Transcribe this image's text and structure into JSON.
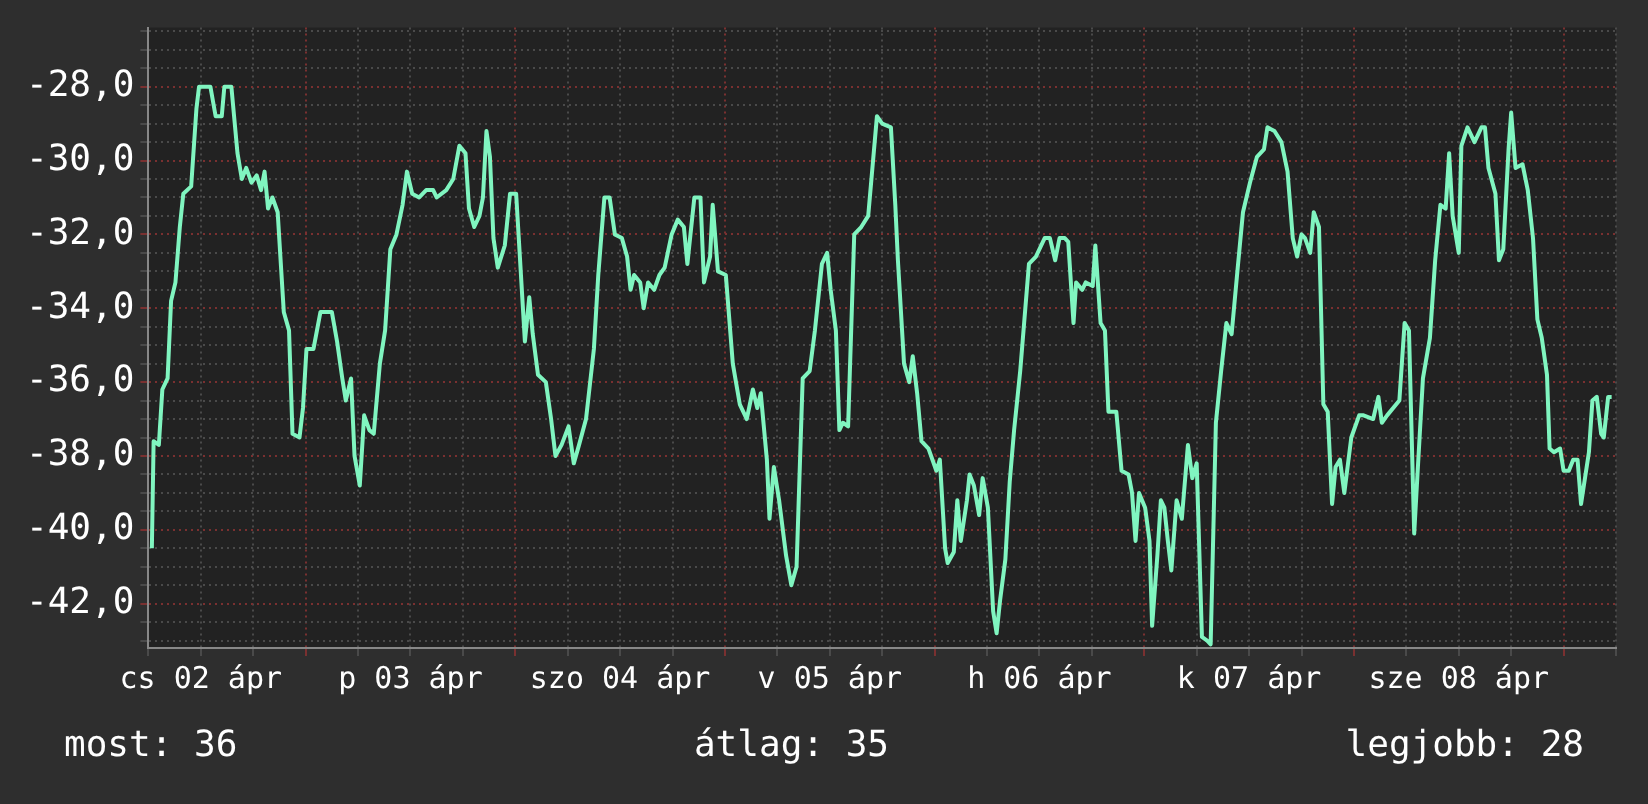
{
  "chart_data": {
    "type": "line",
    "color": "#80f5c0",
    "grid": true,
    "legend": false,
    "marker": "none",
    "line_style": "solid",
    "annotations": [
      "most: 36",
      "átlag: 35",
      "legjobb: 28"
    ],
    "xlim": [
      "--04-02T06:00",
      "--04-09T06:00"
    ],
    "xticks": [
      {
        "value": "--04-02T06:00",
        "label": null
      },
      {
        "value": "--04-02T12:00",
        "label": "cs 02 ápr"
      },
      {
        "value": "--04-02T18:00",
        "label": null
      },
      {
        "value": "--04-03T00:00",
        "label": null
      },
      {
        "value": "--04-03T06:00",
        "label": null
      },
      {
        "value": "--04-03T12:00",
        "label": "p 03 ápr"
      },
      {
        "value": "--04-03T18:00",
        "label": null
      },
      {
        "value": "--04-04T00:00",
        "label": null
      },
      {
        "value": "--04-04T06:00",
        "label": null
      },
      {
        "value": "--04-04T12:00",
        "label": "szo 04 ápr"
      },
      {
        "value": "--04-04T18:00",
        "label": null
      },
      {
        "value": "--04-05T00:00",
        "label": null
      },
      {
        "value": "--04-05T06:00",
        "label": null
      },
      {
        "value": "--04-05T12:00",
        "label": "v 05 ápr"
      },
      {
        "value": "--04-05T18:00",
        "label": null
      },
      {
        "value": "--04-06T00:00",
        "label": null
      },
      {
        "value": "--04-06T06:00",
        "label": null
      },
      {
        "value": "--04-06T12:00",
        "label": "h 06 ápr"
      },
      {
        "value": "--04-06T18:00",
        "label": null
      },
      {
        "value": "--04-07T00:00",
        "label": null
      },
      {
        "value": "--04-07T06:00",
        "label": null
      },
      {
        "value": "--04-07T12:00",
        "label": "k 07 ápr"
      },
      {
        "value": "--04-07T18:00",
        "label": null
      },
      {
        "value": "--04-08T00:00",
        "label": null
      },
      {
        "value": "--04-08T06:00",
        "label": null
      },
      {
        "value": "--04-08T12:00",
        "label": "sze 08 ápr"
      },
      {
        "value": "--04-08T18:00",
        "label": null
      },
      {
        "value": "--04-09T00:00",
        "label": null
      },
      {
        "value": "--04-09T06:00",
        "label": null
      }
    ],
    "x": [
      "--04-02T06:24",
      "--04-02T06:36",
      "--04-02T07:12",
      "--04-02T07:36",
      "--04-02T08:12",
      "--04-02T08:36",
      "--04-02T09:06",
      "--04-02T09:36",
      "--04-02T10:00",
      "--04-02T10:54",
      "--04-02T11:30",
      "--04-02T11:48",
      "--04-02T13:06",
      "--04-02T13:42",
      "--04-02T14:24",
      "--04-02T14:42",
      "--04-02T15:30",
      "--04-02T16:12",
      "--04-02T16:42",
      "--04-02T17:12",
      "--04-02T17:48",
      "--04-02T18:24",
      "--04-02T18:54",
      "--04-02T19:18",
      "--04-02T19:42",
      "--04-02T20:12",
      "--04-02T20:48",
      "--04-02T21:30",
      "--04-02T22:06",
      "--04-02T22:30",
      "--04-02T23:18",
      "--04-02T23:42",
      "--04-03T00:06",
      "--04-03T00:54",
      "--04-03T01:42",
      "--04-03T03:00",
      "--04-03T03:36",
      "--04-03T04:12",
      "--04-03T04:36",
      "--04-03T05:12",
      "--04-03T05:36",
      "--04-03T06:12",
      "--04-03T06:42",
      "--04-03T07:18",
      "--04-03T07:48",
      "--04-03T08:30",
      "--04-03T09:06",
      "--04-03T09:42",
      "--04-03T10:24",
      "--04-03T11:06",
      "--04-03T11:36",
      "--04-03T12:12",
      "--04-03T13:00",
      "--04-03T13:48",
      "--04-03T14:36",
      "--04-03T15:00",
      "--04-03T16:06",
      "--04-03T16:54",
      "--04-03T17:36",
      "--04-03T18:18",
      "--04-03T18:42",
      "--04-03T19:18",
      "--04-03T19:54",
      "--04-03T20:18",
      "--04-03T20:42",
      "--04-03T21:06",
      "--04-03T21:30",
      "--04-03T22:00",
      "--04-03T22:48",
      "--04-03T23:24",
      "--04-04T00:06",
      "--04-04T00:36",
      "--04-04T01:06",
      "--04-04T01:36",
      "--04-04T02:00",
      "--04-04T02:36",
      "--04-04T03:30",
      "--04-04T04:06",
      "--04-04T04:36",
      "--04-04T05:18",
      "--04-04T06:06",
      "--04-04T06:42",
      "--04-04T07:18",
      "--04-04T08:06",
      "--04-04T09:00",
      "--04-04T09:30",
      "--04-04T10:12",
      "--04-04T10:48",
      "--04-04T11:24",
      "--04-04T12:12",
      "--04-04T12:48",
      "--04-04T13:12",
      "--04-04T13:36",
      "--04-04T14:18",
      "--04-04T14:42",
      "--04-04T15:12",
      "--04-04T15:54",
      "--04-04T16:30",
      "--04-04T17:06",
      "--04-04T17:54",
      "--04-04T18:36",
      "--04-04T19:18",
      "--04-04T19:42",
      "--04-04T20:30",
      "--04-04T21:12",
      "--04-04T21:36",
      "--04-04T22:18",
      "--04-04T22:36",
      "--04-04T23:12",
      "--04-05T00:06",
      "--04-05T00:54",
      "--04-05T01:42",
      "--04-05T02:30",
      "--04-05T03:12",
      "--04-05T03:42",
      "--04-05T04:06",
      "--04-05T04:48",
      "--04-05T05:06",
      "--04-05T05:36",
      "--04-05T06:12",
      "--04-05T07:00",
      "--04-05T07:36",
      "--04-05T08:12",
      "--04-05T08:54",
      "--04-05T09:42",
      "--04-05T10:18",
      "--04-05T11:06",
      "--04-05T11:42",
      "--04-05T12:06",
      "--04-05T12:42",
      "--04-05T13:06",
      "--04-05T13:30",
      "--04-05T14:06",
      "--04-05T14:48",
      "--04-05T15:36",
      "--04-05T16:24",
      "--04-05T17:24",
      "--04-05T18:00",
      "--04-05T19:00",
      "--04-05T19:30",
      "--04-05T19:48",
      "--04-05T20:30",
      "--04-05T21:06",
      "--04-05T21:30",
      "--04-05T22:00",
      "--04-05T22:30",
      "--04-05T23:18",
      "--04-06T00:12",
      "--04-06T00:36",
      "--04-06T01:12",
      "--04-06T01:30",
      "--04-06T02:12",
      "--04-06T02:36",
      "--04-06T03:00",
      "--04-06T03:42",
      "--04-06T04:00",
      "--04-06T04:30",
      "--04-06T05:06",
      "--04-06T05:30",
      "--04-06T06:06",
      "--04-06T06:42",
      "--04-06T07:06",
      "--04-06T07:30",
      "--04-06T08:06",
      "--04-06T08:36",
      "--04-06T09:06",
      "--04-06T09:48",
      "--04-06T10:48",
      "--04-06T11:36",
      "--04-06T12:36",
      "--04-06T13:12",
      "--04-06T13:48",
      "--04-06T14:18",
      "--04-06T14:54",
      "--04-06T15:18",
      "--04-06T15:54",
      "--04-06T16:12",
      "--04-06T16:54",
      "--04-06T17:18",
      "--04-06T18:06",
      "--04-06T18:24",
      "--04-06T19:00",
      "--04-06T19:30",
      "--04-06T19:54",
      "--04-06T20:48",
      "--04-06T21:24",
      "--04-06T22:12",
      "--04-06T22:36",
      "--04-06T23:00",
      "--04-06T23:24",
      "--04-07T00:06",
      "--04-07T00:36",
      "--04-07T00:54",
      "--04-07T01:30",
      "--04-07T01:54",
      "--04-07T02:18",
      "--04-07T02:42",
      "--04-07T03:06",
      "--04-07T03:42",
      "--04-07T04:18",
      "--04-07T05:00",
      "--04-07T05:30",
      "--04-07T06:00",
      "--04-07T06:36",
      "--04-07T07:12",
      "--04-07T07:36",
      "--04-07T08:12",
      "--04-07T08:48",
      "--04-07T09:24",
      "--04-07T10:00",
      "--04-07T10:42",
      "--04-07T11:18",
      "--04-07T12:06",
      "--04-07T12:54",
      "--04-07T13:42",
      "--04-07T14:06",
      "--04-07T14:54",
      "--04-07T15:42",
      "--04-07T16:24",
      "--04-07T17:00",
      "--04-07T17:30",
      "--04-07T18:00",
      "--04-07T18:24",
      "--04-07T19:00",
      "--04-07T19:24",
      "--04-07T20:00",
      "--04-07T20:30",
      "--04-07T21:00",
      "--04-07T21:30",
      "--04-07T21:54",
      "--04-07T22:24",
      "--04-07T22:54",
      "--04-07T23:42",
      "--04-08T00:36",
      "--04-08T01:06",
      "--04-08T02:12",
      "--04-08T02:48",
      "--04-08T03:12",
      "--04-08T03:48",
      "--04-08T05:12",
      "--04-08T05:48",
      "--04-08T06:18",
      "--04-08T06:54",
      "--04-08T07:18",
      "--04-08T07:54",
      "--04-08T08:42",
      "--04-08T09:18",
      "--04-08T09:54",
      "--04-08T10:30",
      "--04-08T10:54",
      "--04-08T11:18",
      "--04-08T12:00",
      "--04-08T12:18",
      "--04-08T13:00",
      "--04-08T13:48",
      "--04-08T14:36",
      "--04-08T15:00",
      "--04-08T15:24",
      "--04-08T16:12",
      "--04-08T16:36",
      "--04-08T17:06",
      "--04-08T17:42",
      "--04-08T18:00",
      "--04-08T18:30",
      "--04-08T19:18",
      "--04-08T19:54",
      "--04-08T20:30",
      "--04-08T21:00",
      "--04-08T21:30",
      "--04-08T22:06",
      "--04-08T22:24",
      "--04-08T22:54",
      "--04-08T23:36",
      "--04-09T00:00",
      "--04-09T00:36",
      "--04-09T01:06",
      "--04-09T01:36",
      "--04-09T02:00",
      "--04-09T02:54",
      "--04-09T03:18",
      "--04-09T03:48",
      "--04-09T04:18",
      "--04-09T04:36",
      "--04-09T05:06",
      "--04-09T05:30"
    ],
    "ylim": [
      -43.2,
      -26.4
    ],
    "yticks": [
      {
        "value": -43,
        "label": null
      },
      {
        "value": -42.5,
        "label": null
      },
      {
        "value": -42,
        "label": "-42,0"
      },
      {
        "value": -41.5,
        "label": null
      },
      {
        "value": -41,
        "label": null
      },
      {
        "value": -40.5,
        "label": null
      },
      {
        "value": -40,
        "label": "-40,0"
      },
      {
        "value": -39.5,
        "label": null
      },
      {
        "value": -39,
        "label": null
      },
      {
        "value": -38.5,
        "label": null
      },
      {
        "value": -38,
        "label": "-38,0"
      },
      {
        "value": -37.5,
        "label": null
      },
      {
        "value": -37,
        "label": null
      },
      {
        "value": -36.5,
        "label": null
      },
      {
        "value": -36,
        "label": "-36,0"
      },
      {
        "value": -35.5,
        "label": null
      },
      {
        "value": -35,
        "label": null
      },
      {
        "value": -34.5,
        "label": null
      },
      {
        "value": -34,
        "label": "-34,0"
      },
      {
        "value": -33.5,
        "label": null
      },
      {
        "value": -33,
        "label": null
      },
      {
        "value": -32.5,
        "label": null
      },
      {
        "value": -32,
        "label": "-32,0"
      },
      {
        "value": -31.5,
        "label": null
      },
      {
        "value": -31,
        "label": null
      },
      {
        "value": -30.5,
        "label": null
      },
      {
        "value": -30,
        "label": "-30,0"
      },
      {
        "value": -29.5,
        "label": null
      },
      {
        "value": -29,
        "label": null
      },
      {
        "value": -28.5,
        "label": null
      },
      {
        "value": -28,
        "label": "-28,0"
      },
      {
        "value": -27.5,
        "label": null
      },
      {
        "value": -27,
        "label": null
      },
      {
        "value": -26.5,
        "label": null
      }
    ],
    "values": [
      -40.5,
      -37.6,
      -37.7,
      -36.2,
      -35.9,
      -33.8,
      -33.3,
      -31.8,
      -30.9,
      -30.7,
      -28.6,
      -28.0,
      -28.0,
      -28.8,
      -28.8,
      -28.0,
      -28.0,
      -29.8,
      -30.5,
      -30.2,
      -30.6,
      -30.4,
      -30.8,
      -30.3,
      -31.3,
      -31.0,
      -31.4,
      -34.1,
      -34.6,
      -37.4,
      -37.5,
      -36.7,
      -35.1,
      -35.1,
      -34.1,
      -34.1,
      -34.9,
      -35.9,
      -36.5,
      -35.9,
      -38.0,
      -38.8,
      -36.9,
      -37.3,
      -37.4,
      -35.5,
      -34.6,
      -32.4,
      -32.0,
      -31.2,
      -30.3,
      -30.9,
      -31.0,
      -30.8,
      -30.8,
      -31.0,
      -30.8,
      -30.5,
      -29.6,
      -29.8,
      -31.3,
      -31.8,
      -31.5,
      -31.0,
      -29.2,
      -29.9,
      -32.1,
      -32.9,
      -32.3,
      -30.9,
      -30.9,
      -32.9,
      -34.9,
      -33.7,
      -34.7,
      -35.8,
      -36.0,
      -37.0,
      -38.0,
      -37.7,
      -37.2,
      -38.2,
      -37.7,
      -37.0,
      -35.1,
      -33.1,
      -31.0,
      -31.0,
      -32.0,
      -32.1,
      -32.6,
      -33.5,
      -33.1,
      -33.3,
      -34.0,
      -33.3,
      -33.5,
      -33.1,
      -32.9,
      -32.0,
      -31.6,
      -31.8,
      -32.8,
      -31.0,
      -31.0,
      -33.3,
      -32.6,
      -31.2,
      -33.0,
      -33.1,
      -35.5,
      -36.6,
      -37.0,
      -36.2,
      -36.7,
      -36.3,
      -38.1,
      -39.7,
      -38.3,
      -39.2,
      -40.7,
      -41.5,
      -41.0,
      -35.9,
      -35.7,
      -34.6,
      -32.8,
      -32.5,
      -33.5,
      -34.6,
      -37.3,
      -37.1,
      -37.2,
      -32.0,
      -31.8,
      -31.5,
      -28.8,
      -29.0,
      -29.1,
      -31.2,
      -32.7,
      -35.5,
      -36.0,
      -35.3,
      -36.3,
      -37.6,
      -37.8,
      -38.4,
      -38.1,
      -40.5,
      -40.9,
      -40.6,
      -39.2,
      -40.3,
      -39.2,
      -38.5,
      -38.8,
      -39.6,
      -38.6,
      -39.4,
      -42.2,
      -42.8,
      -41.9,
      -40.8,
      -38.7,
      -37.3,
      -35.7,
      -32.8,
      -32.6,
      -32.1,
      -32.1,
      -32.7,
      -32.1,
      -32.1,
      -32.2,
      -34.4,
      -33.3,
      -33.5,
      -33.3,
      -33.4,
      -32.3,
      -34.4,
      -34.6,
      -36.8,
      -36.8,
      -38.4,
      -38.5,
      -39.0,
      -40.3,
      -39.0,
      -39.4,
      -40.3,
      -42.6,
      -40.7,
      -39.2,
      -39.4,
      -40.3,
      -41.1,
      -39.2,
      -39.7,
      -37.7,
      -38.6,
      -38.2,
      -42.9,
      -43.0,
      -43.1,
      -37.1,
      -35.7,
      -34.4,
      -34.7,
      -32.9,
      -31.4,
      -30.6,
      -29.9,
      -29.7,
      -29.1,
      -29.2,
      -29.5,
      -30.3,
      -32.1,
      -32.6,
      -32.0,
      -32.1,
      -32.5,
      -31.4,
      -31.8,
      -36.6,
      -36.8,
      -39.3,
      -38.3,
      -38.1,
      -39.0,
      -37.5,
      -36.9,
      -36.9,
      -37.0,
      -36.4,
      -37.1,
      -36.9,
      -36.5,
      -34.4,
      -34.6,
      -40.1,
      -38.4,
      -35.9,
      -34.8,
      -32.7,
      -31.2,
      -31.3,
      -29.8,
      -31.5,
      -32.5,
      -29.6,
      -29.1,
      -29.5,
      -29.1,
      -29.1,
      -30.2,
      -30.9,
      -32.7,
      -32.4,
      -29.7,
      -28.7,
      -30.2,
      -30.1,
      -30.8,
      -32.1,
      -34.3,
      -34.8,
      -35.8,
      -37.8,
      -37.9,
      -37.8,
      -38.4,
      -38.4,
      -38.1,
      -38.1,
      -39.3,
      -37.9,
      -36.5,
      -36.4,
      -37.4,
      -37.5,
      -36.4,
      -36.4
    ]
  }
}
